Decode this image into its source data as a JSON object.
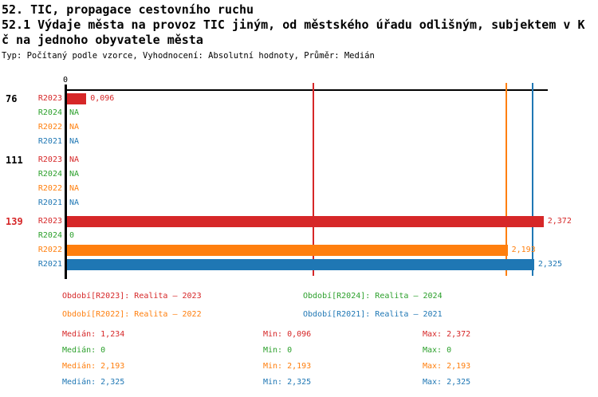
{
  "header": {
    "line1": "52. TIC, propagace cestovního ruchu",
    "line2": "52.1 Výdaje města na provoz TIC jiným, od městského úřadu odlišným, subjektem v K",
    "line3": "č na jednoho obyvatele města",
    "meta": "Typ: Počítaný podle vzorce, Vyhodnocení: Absolutní hodnoty, Průměr: Medián"
  },
  "colors": {
    "R2023": "#d62728",
    "R2024": "#2ca02c",
    "R2022": "#ff7f0e",
    "R2021": "#1f77b4",
    "axis": "#000000",
    "group_label": "#000000",
    "group_label_highlight": "#d62728"
  },
  "chart_data": {
    "type": "bar",
    "orientation": "horizontal",
    "value_axis": {
      "zero_tick_label": "0",
      "position": "top"
    },
    "xlim": [
      0,
      2.63
    ],
    "groups": [
      {
        "id": "76",
        "highlight": false,
        "rows": [
          {
            "series": "R2023",
            "value": 0.096,
            "label": "0,096"
          },
          {
            "series": "R2024",
            "value": null,
            "label": "NA"
          },
          {
            "series": "R2022",
            "value": null,
            "label": "NA"
          },
          {
            "series": "R2021",
            "value": null,
            "label": "NA"
          }
        ]
      },
      {
        "id": "111",
        "highlight": false,
        "rows": [
          {
            "series": "R2023",
            "value": null,
            "label": "NA"
          },
          {
            "series": "R2024",
            "value": null,
            "label": "NA"
          },
          {
            "series": "R2022",
            "value": null,
            "label": "NA"
          },
          {
            "series": "R2021",
            "value": null,
            "label": "NA"
          }
        ]
      },
      {
        "id": "139",
        "highlight": true,
        "rows": [
          {
            "series": "R2023",
            "value": 2.372,
            "label": "2,372"
          },
          {
            "series": "R2024",
            "value": 0,
            "label": "0"
          },
          {
            "series": "R2022",
            "value": 2.193,
            "label": "2,193"
          },
          {
            "series": "R2021",
            "value": 2.325,
            "label": "2,325"
          }
        ]
      }
    ],
    "median_lines": [
      {
        "series": "R2023",
        "value": 1.234
      },
      {
        "series": "R2022",
        "value": 2.193
      },
      {
        "series": "R2021",
        "value": 2.325
      }
    ]
  },
  "legend": [
    {
      "series": "R2023",
      "text": "Období[R2023]: Realita – 2023"
    },
    {
      "series": "R2024",
      "text": "Období[R2024]: Realita – 2024"
    },
    {
      "series": "R2022",
      "text": "Období[R2022]: Realita – 2022"
    },
    {
      "series": "R2021",
      "text": "Období[R2021]: Realita – 2021"
    }
  ],
  "stats": [
    {
      "series": "R2023",
      "median": "Medián: 1,234",
      "min": "Min: 0,096",
      "max": "Max: 2,372"
    },
    {
      "series": "R2024",
      "median": "Medián: 0",
      "min": "Min: 0",
      "max": "Max: 0"
    },
    {
      "series": "R2022",
      "median": "Medián: 2,193",
      "min": "Min: 2,193",
      "max": "Max: 2,193"
    },
    {
      "series": "R2021",
      "median": "Medián: 2,325",
      "min": "Min: 2,325",
      "max": "Max: 2,325"
    }
  ]
}
